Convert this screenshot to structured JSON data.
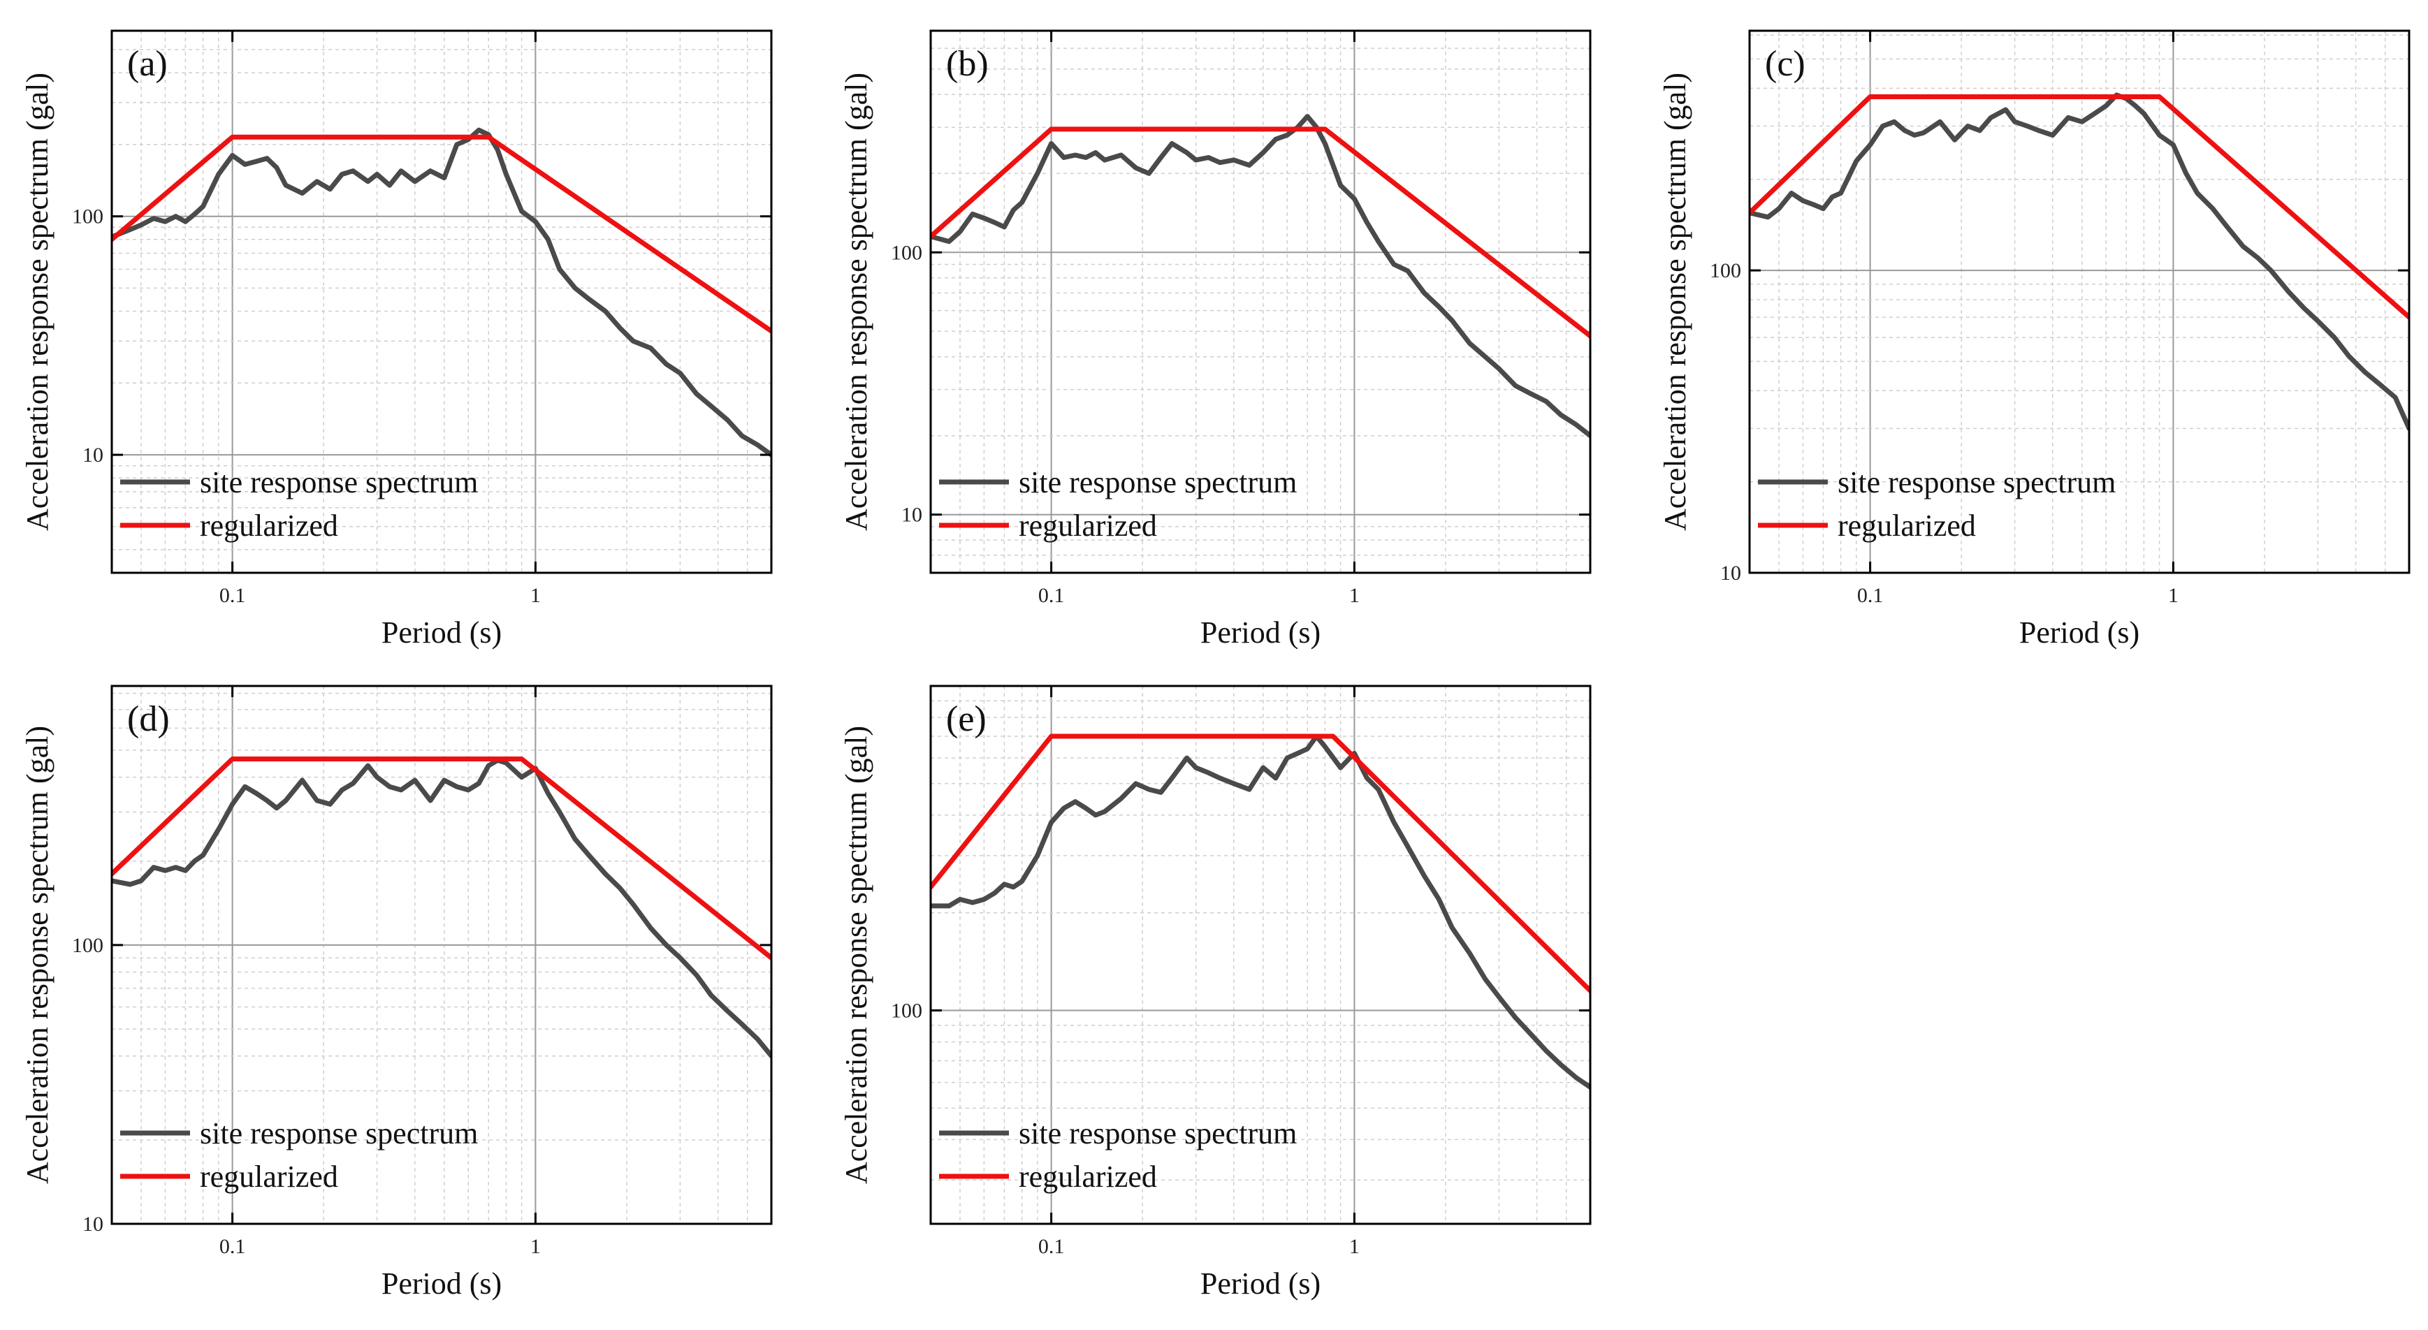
{
  "figure": {
    "shared_xlabel": "Period (s)",
    "shared_ylabel": "Acceleration response spectrum (gal)",
    "legend": {
      "site": "site response spectrum",
      "regularized": "regularized"
    },
    "colors": {
      "site": "#4a4a4a",
      "regularized": "#ee1111",
      "grid_major": "#999999",
      "grid_minor": "#cfcfcf",
      "frame": "#000000"
    }
  },
  "chart_data": [
    {
      "type": "line",
      "panel": "(a)",
      "xscale": "log",
      "yscale": "log",
      "xlabel": "Period (s)",
      "ylabel": "Acceleration response spectrum (gal)",
      "xlim": [
        0.04,
        6.0
      ],
      "ylim": [
        3.2,
        600
      ],
      "xticks": [
        0.1,
        1
      ],
      "xtick_labels": [
        "0.1",
        "1"
      ],
      "yticks": [
        10,
        100
      ],
      "ytick_labels": [
        "10",
        "100"
      ],
      "legend_position": "lower-left",
      "series": [
        {
          "name": "site response spectrum",
          "x": [
            0.04,
            0.046,
            0.05,
            0.055,
            0.06,
            0.065,
            0.07,
            0.075,
            0.08,
            0.09,
            0.1,
            0.11,
            0.12,
            0.13,
            0.14,
            0.15,
            0.17,
            0.19,
            0.21,
            0.23,
            0.25,
            0.28,
            0.3,
            0.33,
            0.36,
            0.4,
            0.45,
            0.5,
            0.55,
            0.6,
            0.65,
            0.7,
            0.75,
            0.8,
            0.9,
            1.0,
            1.1,
            1.2,
            1.35,
            1.5,
            1.7,
            1.9,
            2.1,
            2.4,
            2.7,
            3.0,
            3.4,
            3.8,
            4.3,
            4.8,
            5.4,
            6.0
          ],
          "y": [
            82,
            88,
            92,
            98,
            95,
            100,
            95,
            102,
            110,
            150,
            180,
            165,
            170,
            175,
            160,
            135,
            125,
            140,
            130,
            150,
            155,
            140,
            150,
            135,
            155,
            140,
            155,
            145,
            200,
            210,
            230,
            220,
            190,
            150,
            105,
            95,
            80,
            60,
            50,
            45,
            40,
            34,
            30,
            28,
            24,
            22,
            18,
            16,
            14,
            12,
            11,
            10
          ]
        },
        {
          "name": "regularized",
          "x": [
            0.04,
            0.1,
            0.7,
            6.0
          ],
          "y": [
            80,
            215,
            215,
            33
          ]
        }
      ]
    },
    {
      "type": "line",
      "panel": "(b)",
      "xscale": "log",
      "yscale": "log",
      "xlabel": "Period (s)",
      "ylabel": "Acceleration response spectrum (gal)",
      "xlim": [
        0.04,
        6.0
      ],
      "ylim": [
        6,
        700
      ],
      "xticks": [
        0.1,
        1
      ],
      "xtick_labels": [
        "0.1",
        "1"
      ],
      "yticks": [
        10,
        100
      ],
      "ytick_labels": [
        "10",
        "100"
      ],
      "legend_position": "lower-left",
      "series": [
        {
          "name": "site response spectrum",
          "x": [
            0.04,
            0.046,
            0.05,
            0.055,
            0.06,
            0.065,
            0.07,
            0.075,
            0.08,
            0.09,
            0.1,
            0.11,
            0.12,
            0.13,
            0.14,
            0.15,
            0.17,
            0.19,
            0.21,
            0.23,
            0.25,
            0.28,
            0.3,
            0.33,
            0.36,
            0.4,
            0.45,
            0.5,
            0.55,
            0.6,
            0.65,
            0.7,
            0.75,
            0.8,
            0.9,
            1.0,
            1.1,
            1.2,
            1.35,
            1.5,
            1.7,
            1.9,
            2.1,
            2.4,
            2.7,
            3.0,
            3.4,
            3.8,
            4.3,
            4.8,
            5.4,
            6.0
          ],
          "y": [
            115,
            110,
            120,
            140,
            135,
            130,
            125,
            145,
            155,
            200,
            260,
            230,
            235,
            230,
            240,
            225,
            235,
            210,
            200,
            230,
            260,
            240,
            225,
            230,
            220,
            225,
            215,
            240,
            270,
            280,
            300,
            330,
            300,
            260,
            180,
            160,
            130,
            110,
            90,
            85,
            70,
            62,
            55,
            45,
            40,
            36,
            31,
            29,
            27,
            24,
            22,
            20
          ]
        },
        {
          "name": "regularized",
          "x": [
            0.04,
            0.1,
            0.8,
            6.0
          ],
          "y": [
            115,
            295,
            295,
            48
          ]
        }
      ]
    },
    {
      "type": "line",
      "panel": "(c)",
      "xscale": "log",
      "yscale": "log",
      "xlabel": "Period (s)",
      "ylabel": "Acceleration response spectrum (gal)",
      "xlim": [
        0.04,
        6.0
      ],
      "ylim": [
        10,
        620
      ],
      "xticks": [
        0.1,
        1
      ],
      "xtick_labels": [
        "0.1",
        "1"
      ],
      "yticks": [
        10,
        100
      ],
      "ytick_labels": [
        "10",
        "100"
      ],
      "legend_position": "lower-left",
      "series": [
        {
          "name": "site response spectrum",
          "x": [
            0.04,
            0.046,
            0.05,
            0.055,
            0.06,
            0.065,
            0.07,
            0.075,
            0.08,
            0.09,
            0.1,
            0.11,
            0.12,
            0.13,
            0.14,
            0.15,
            0.17,
            0.19,
            0.21,
            0.23,
            0.25,
            0.28,
            0.3,
            0.33,
            0.36,
            0.4,
            0.45,
            0.5,
            0.55,
            0.6,
            0.65,
            0.7,
            0.75,
            0.8,
            0.9,
            1.0,
            1.1,
            1.2,
            1.35,
            1.5,
            1.7,
            1.9,
            2.1,
            2.4,
            2.7,
            3.0,
            3.4,
            3.8,
            4.3,
            4.8,
            5.4,
            6.0
          ],
          "y": [
            155,
            150,
            160,
            180,
            170,
            165,
            160,
            175,
            180,
            230,
            260,
            300,
            310,
            290,
            280,
            285,
            310,
            270,
            300,
            290,
            320,
            340,
            310,
            300,
            290,
            280,
            320,
            310,
            330,
            350,
            380,
            370,
            350,
            330,
            280,
            260,
            210,
            180,
            160,
            140,
            120,
            110,
            100,
            85,
            75,
            68,
            60,
            52,
            46,
            42,
            38,
            30
          ]
        },
        {
          "name": "regularized",
          "x": [
            0.04,
            0.1,
            0.9,
            6.0
          ],
          "y": [
            155,
            375,
            375,
            70
          ]
        }
      ]
    },
    {
      "type": "line",
      "panel": "(d)",
      "xscale": "log",
      "yscale": "log",
      "xlabel": "Period (s)",
      "ylabel": "Acceleration response spectrum (gal)",
      "xlim": [
        0.04,
        6.0
      ],
      "ylim": [
        10,
        850
      ],
      "xticks": [
        0.1,
        1
      ],
      "xtick_labels": [
        "0.1",
        "1"
      ],
      "yticks": [
        10,
        100
      ],
      "ytick_labels": [
        "10",
        "100"
      ],
      "legend_position": "lower-left",
      "series": [
        {
          "name": "site response spectrum",
          "x": [
            0.04,
            0.046,
            0.05,
            0.055,
            0.06,
            0.065,
            0.07,
            0.075,
            0.08,
            0.09,
            0.1,
            0.11,
            0.12,
            0.13,
            0.14,
            0.15,
            0.17,
            0.19,
            0.21,
            0.23,
            0.25,
            0.28,
            0.3,
            0.33,
            0.36,
            0.4,
            0.45,
            0.5,
            0.55,
            0.6,
            0.65,
            0.7,
            0.75,
            0.8,
            0.9,
            1.0,
            1.1,
            1.2,
            1.35,
            1.5,
            1.7,
            1.9,
            2.1,
            2.4,
            2.7,
            3.0,
            3.4,
            3.8,
            4.3,
            4.8,
            5.4,
            6.0
          ],
          "y": [
            170,
            165,
            170,
            190,
            185,
            190,
            185,
            200,
            210,
            260,
            320,
            370,
            350,
            330,
            310,
            330,
            390,
            330,
            320,
            360,
            380,
            440,
            400,
            370,
            360,
            390,
            330,
            390,
            370,
            360,
            380,
            440,
            460,
            450,
            400,
            430,
            350,
            300,
            240,
            210,
            180,
            160,
            140,
            115,
            100,
            90,
            78,
            66,
            58,
            52,
            46,
            40
          ]
        },
        {
          "name": "regularized",
          "x": [
            0.04,
            0.1,
            0.9,
            6.0
          ],
          "y": [
            180,
            465,
            465,
            90
          ]
        }
      ]
    },
    {
      "type": "line",
      "panel": "(e)",
      "xscale": "log",
      "yscale": "log",
      "xlabel": "Period (s)",
      "ylabel": "Acceleration response spectrum (gal)",
      "xlim": [
        0.04,
        6.0
      ],
      "ylim": [
        22,
        1000
      ],
      "xticks": [
        0.1,
        1
      ],
      "xtick_labels": [
        "0.1",
        "1"
      ],
      "yticks": [
        100
      ],
      "ytick_labels": [
        "100"
      ],
      "legend_position": "lower-left",
      "series": [
        {
          "name": "site response spectrum",
          "x": [
            0.04,
            0.046,
            0.05,
            0.055,
            0.06,
            0.065,
            0.07,
            0.075,
            0.08,
            0.09,
            0.1,
            0.11,
            0.12,
            0.13,
            0.14,
            0.15,
            0.17,
            0.19,
            0.21,
            0.23,
            0.25,
            0.28,
            0.3,
            0.33,
            0.36,
            0.4,
            0.45,
            0.5,
            0.55,
            0.6,
            0.65,
            0.7,
            0.75,
            0.8,
            0.9,
            1.0,
            1.1,
            1.2,
            1.35,
            1.5,
            1.7,
            1.9,
            2.1,
            2.4,
            2.7,
            3.0,
            3.4,
            3.8,
            4.3,
            4.8,
            5.4,
            6.0
          ],
          "y": [
            210,
            210,
            220,
            215,
            220,
            230,
            245,
            240,
            250,
            300,
            380,
            420,
            440,
            420,
            400,
            410,
            450,
            500,
            480,
            470,
            520,
            600,
            560,
            540,
            520,
            500,
            480,
            560,
            520,
            600,
            620,
            640,
            700,
            650,
            560,
            620,
            520,
            480,
            380,
            320,
            260,
            220,
            180,
            150,
            125,
            110,
            95,
            85,
            75,
            68,
            62,
            58
          ]
        },
        {
          "name": "regularized",
          "x": [
            0.04,
            0.1,
            0.85,
            6.0
          ],
          "y": [
            240,
            700,
            700,
            115
          ]
        }
      ]
    }
  ]
}
